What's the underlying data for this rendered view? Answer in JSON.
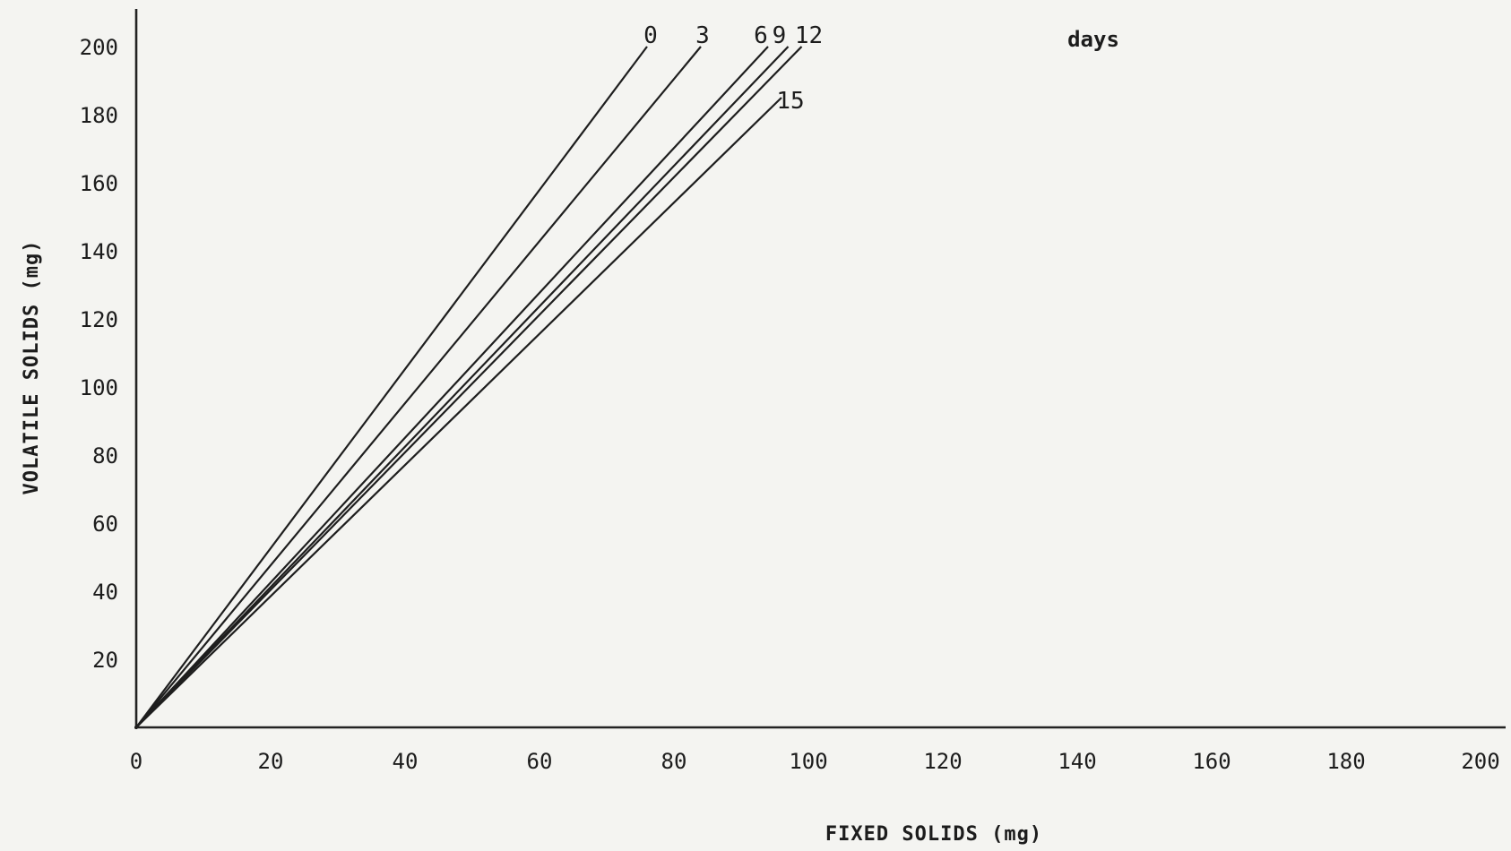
{
  "chart_data": {
    "type": "line",
    "title": "",
    "xlabel": "FIXED SOLIDS (mg)",
    "ylabel": "VOLATILE SOLIDS (mg)",
    "xlim": [
      0,
      200
    ],
    "ylim": [
      0,
      200
    ],
    "x_ticks": [
      "0",
      "20",
      "40",
      "60",
      "80",
      "100",
      "120",
      "140",
      "160",
      "180",
      "200"
    ],
    "y_ticks": [
      "20",
      "40",
      "60",
      "80",
      "100",
      "120",
      "140",
      "160",
      "180",
      "200"
    ],
    "grid": false,
    "line_label_unit": "days",
    "series": [
      {
        "name": "0",
        "x": [
          0,
          76
        ],
        "y": [
          0,
          200
        ]
      },
      {
        "name": "3",
        "x": [
          0,
          84
        ],
        "y": [
          0,
          200
        ]
      },
      {
        "name": "6",
        "x": [
          0,
          94
        ],
        "y": [
          0,
          200
        ]
      },
      {
        "name": "9",
        "x": [
          0,
          97
        ],
        "y": [
          0,
          200
        ]
      },
      {
        "name": "12",
        "x": [
          0,
          99
        ],
        "y": [
          0,
          200
        ]
      },
      {
        "name": "15",
        "x": [
          0,
          96
        ],
        "y": [
          0,
          185
        ]
      }
    ]
  }
}
